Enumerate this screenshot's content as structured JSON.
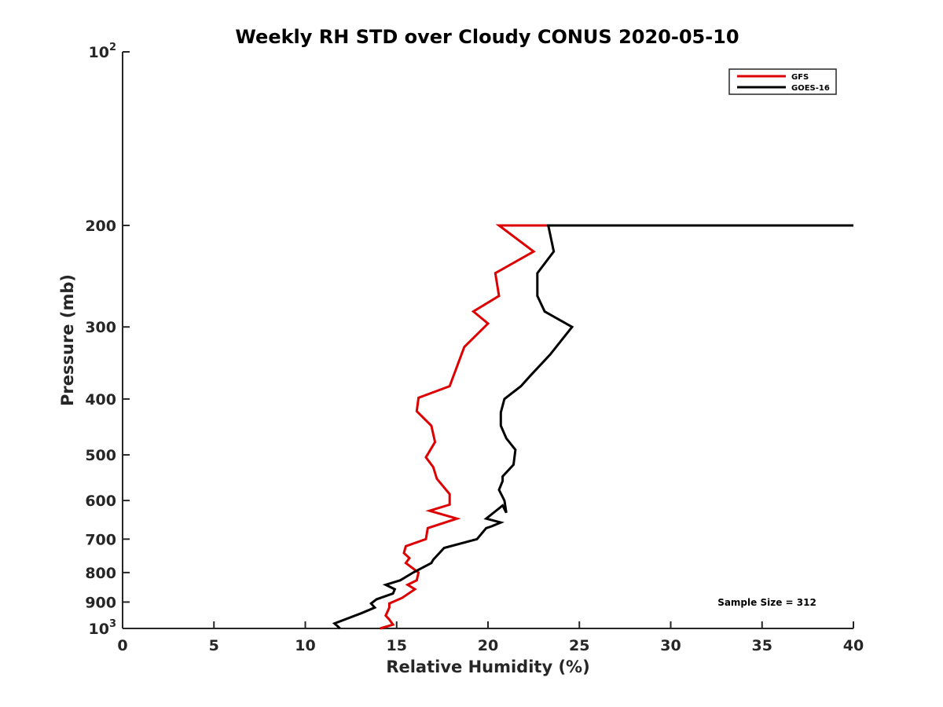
{
  "chart_data": {
    "type": "line",
    "title": "Weekly RH STD over Cloudy CONUS 2020-05-10",
    "xlabel": "Relative Humidity (%)",
    "ylabel": "Pressure (mb)",
    "xlim": [
      0,
      40
    ],
    "ylim": [
      100,
      1000
    ],
    "y_scale": "log",
    "y_reversed": true,
    "x_ticks": [
      "0",
      "5",
      "10",
      "15",
      "20",
      "25",
      "30",
      "35",
      "40"
    ],
    "x_tick_values": [
      0,
      5,
      10,
      15,
      20,
      25,
      30,
      35,
      40
    ],
    "y_tick_values": [
      100,
      200,
      300,
      400,
      500,
      600,
      700,
      800,
      900,
      1000
    ],
    "y_ticks": [
      "10^2",
      "200",
      "300",
      "400",
      "500",
      "600",
      "700",
      "800",
      "900",
      "10^3"
    ],
    "grid": false,
    "legend_position": "top-right",
    "annotation": "Sample Size = 312",
    "series": [
      {
        "name": "GFS",
        "color": "#dd0000",
        "x": [
          40.0,
          20.6,
          22.5,
          20.4,
          20.6,
          19.2,
          20.0,
          18.7,
          17.9,
          16.2,
          16.1,
          16.9,
          17.1,
          16.6,
          17.0,
          17.2,
          17.9,
          17.9,
          16.8,
          18.3,
          16.7,
          16.6,
          15.5,
          15.4,
          15.7,
          15.5,
          16.2,
          16.1,
          15.6,
          16.0,
          15.3,
          14.6,
          14.6,
          14.5,
          14.4,
          14.6,
          14.8,
          14.1
        ],
        "y": [
          200,
          200,
          222,
          242,
          265,
          282,
          296,
          325,
          380,
          398,
          420,
          445,
          475,
          505,
          525,
          550,
          585,
          610,
          625,
          645,
          670,
          700,
          720,
          740,
          755,
          770,
          800,
          825,
          840,
          855,
          885,
          905,
          920,
          935,
          950,
          965,
          985,
          1000
        ]
      },
      {
        "name": "GOES-16",
        "color": "#000000",
        "x": [
          40.0,
          23.3,
          23.6,
          22.7,
          22.7,
          23.1,
          24.6,
          23.4,
          22.3,
          21.8,
          20.9,
          20.7,
          20.7,
          21.0,
          21.5,
          21.4,
          20.8,
          20.8,
          20.6,
          20.9,
          21.0,
          20.8,
          19.9,
          20.7,
          20.2,
          19.9,
          19.4,
          17.6,
          17.0,
          16.9,
          15.9,
          15.2,
          14.4,
          14.9,
          14.8,
          13.9,
          13.6,
          13.8,
          13.1,
          11.6,
          11.9
        ],
        "y": [
          200,
          200,
          222,
          242,
          265,
          282,
          300,
          335,
          365,
          380,
          400,
          422,
          445,
          468,
          490,
          520,
          545,
          555,
          575,
          600,
          630,
          612,
          645,
          655,
          665,
          670,
          700,
          725,
          760,
          770,
          800,
          825,
          840,
          855,
          870,
          890,
          905,
          920,
          940,
          980,
          1000
        ]
      }
    ]
  }
}
